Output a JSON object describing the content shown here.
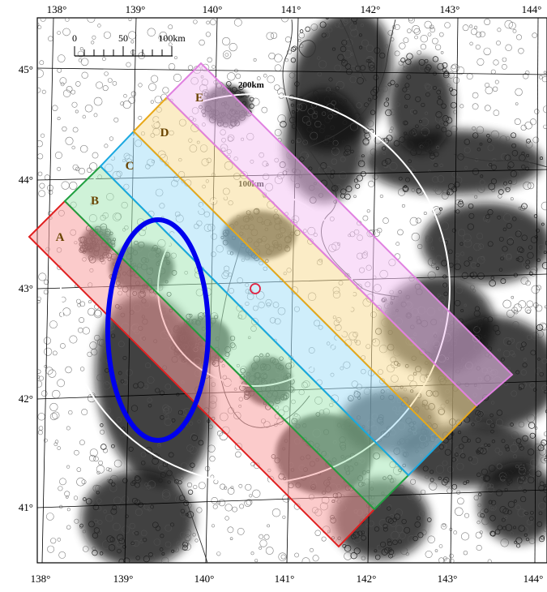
{
  "map": {
    "lon_ticks": [
      "138°",
      "139°",
      "140°",
      "141°",
      "142°",
      "143°",
      "144°"
    ],
    "lat_ticks": [
      "45°",
      "44°",
      "43°",
      "42°",
      "41°"
    ],
    "scale_bar": {
      "labels": [
        "0",
        "50",
        "100km"
      ]
    },
    "rings": [
      {
        "label": "200km"
      },
      {
        "label": "100km"
      }
    ],
    "bands": [
      {
        "label": "A",
        "color": "#e02020",
        "fill": "#f7a0a0"
      },
      {
        "label": "B",
        "color": "#20a040",
        "fill": "#a8e8b8"
      },
      {
        "label": "C",
        "color": "#1aa8e0",
        "fill": "#a8e0f8"
      },
      {
        "label": "D",
        "color": "#e8a818",
        "fill": "#f8dc98"
      },
      {
        "label": "E",
        "color": "#e080e0",
        "fill": "#f4c4f4"
      }
    ],
    "highlight_color": "#0000ee",
    "epicenter_color": "#e02040"
  }
}
